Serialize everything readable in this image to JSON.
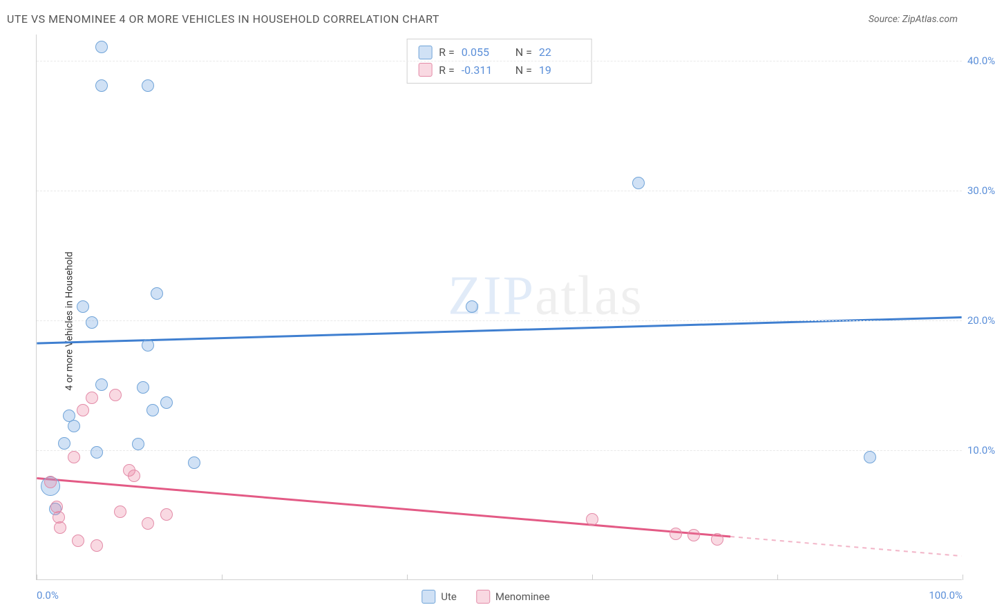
{
  "header": {
    "title": "UTE VS MENOMINEE 4 OR MORE VEHICLES IN HOUSEHOLD CORRELATION CHART",
    "source_label": "Source:",
    "source_value": "ZipAtlas.com"
  },
  "watermark": {
    "zip": "ZIP",
    "atlas": "atlas"
  },
  "chart": {
    "type": "scatter",
    "ylabel": "4 or more Vehicles in Household",
    "xlim": [
      0,
      100
    ],
    "ylim": [
      0,
      42
    ],
    "ytick_values": [
      10,
      20,
      30,
      40
    ],
    "ytick_labels": [
      "10.0%",
      "20.0%",
      "30.0%",
      "40.0%"
    ],
    "xtick_values": [
      0,
      20,
      40,
      60,
      80,
      100
    ],
    "xmin_label": "0.0%",
    "xmax_label": "100.0%",
    "grid_color": "#e8e8e8",
    "axis_color": "#d0d0d0",
    "background_color": "#ffffff",
    "series": [
      {
        "name": "Ute",
        "color_fill": "rgba(120,170,225,0.35)",
        "color_stroke": "#6fa3d8",
        "trend_color": "#3f7fd0",
        "trend_width": 3,
        "marker_radius": 9,
        "R_label": "R =",
        "R_value": "0.055",
        "N_label": "N =",
        "N_value": "22",
        "stat_color": "#5b8fd9",
        "trend": {
          "x1": 0,
          "y1": 18.2,
          "x2": 100,
          "y2": 20.2
        },
        "points": [
          {
            "x": 7,
            "y": 41.0
          },
          {
            "x": 7,
            "y": 38.0
          },
          {
            "x": 12,
            "y": 38.0
          },
          {
            "x": 65,
            "y": 30.5
          },
          {
            "x": 13,
            "y": 22.0
          },
          {
            "x": 47,
            "y": 21.0
          },
          {
            "x": 5,
            "y": 21.0
          },
          {
            "x": 6,
            "y": 19.8
          },
          {
            "x": 12,
            "y": 18.0
          },
          {
            "x": 7,
            "y": 15.0
          },
          {
            "x": 11.5,
            "y": 14.8
          },
          {
            "x": 14,
            "y": 13.6
          },
          {
            "x": 12.5,
            "y": 13.0
          },
          {
            "x": 3.5,
            "y": 12.6
          },
          {
            "x": 4,
            "y": 11.8
          },
          {
            "x": 3,
            "y": 10.5
          },
          {
            "x": 11,
            "y": 10.4
          },
          {
            "x": 6.5,
            "y": 9.8
          },
          {
            "x": 17,
            "y": 9.0
          },
          {
            "x": 90,
            "y": 9.4
          },
          {
            "x": 1.5,
            "y": 7.2,
            "r": 14
          },
          {
            "x": 2,
            "y": 5.4
          }
        ]
      },
      {
        "name": "Menominee",
        "color_fill": "rgba(235,130,160,0.30)",
        "color_stroke": "#e38aa7",
        "trend_color": "#e35a85",
        "trend_width": 3,
        "marker_radius": 9,
        "R_label": "R =",
        "R_value": "-0.311",
        "N_label": "N =",
        "N_value": "19",
        "stat_color": "#5b8fd9",
        "trend": {
          "x1": 0,
          "y1": 7.8,
          "x2": 75,
          "y2": 3.3
        },
        "trend_dash_extend": {
          "x1": 75,
          "y1": 3.3,
          "x2": 100,
          "y2": 1.8
        },
        "points": [
          {
            "x": 8.5,
            "y": 14.2
          },
          {
            "x": 6,
            "y": 14.0
          },
          {
            "x": 5,
            "y": 13.0
          },
          {
            "x": 4,
            "y": 9.4
          },
          {
            "x": 10,
            "y": 8.4
          },
          {
            "x": 10.5,
            "y": 8.0
          },
          {
            "x": 1.5,
            "y": 7.5
          },
          {
            "x": 2.2,
            "y": 5.6
          },
          {
            "x": 2.4,
            "y": 4.8
          },
          {
            "x": 9,
            "y": 5.2
          },
          {
            "x": 14,
            "y": 5.0
          },
          {
            "x": 12,
            "y": 4.3
          },
          {
            "x": 2.5,
            "y": 4.0
          },
          {
            "x": 4.5,
            "y": 3.0
          },
          {
            "x": 6.5,
            "y": 2.6
          },
          {
            "x": 60,
            "y": 4.6
          },
          {
            "x": 69,
            "y": 3.5
          },
          {
            "x": 71,
            "y": 3.4
          },
          {
            "x": 73.5,
            "y": 3.1
          }
        ]
      }
    ],
    "bottom_legend": [
      {
        "label": "Ute",
        "fill": "rgba(120,170,225,0.35)",
        "stroke": "#6fa3d8"
      },
      {
        "label": "Menominee",
        "fill": "rgba(235,130,160,0.30)",
        "stroke": "#e38aa7"
      }
    ]
  }
}
